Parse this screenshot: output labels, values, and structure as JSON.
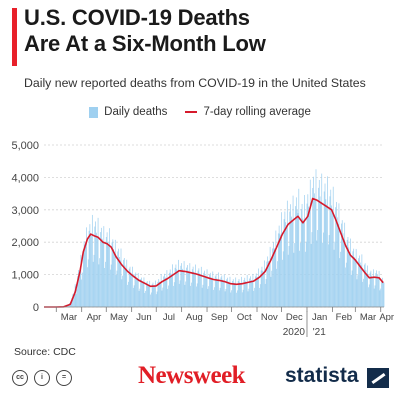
{
  "title_lines": [
    "U.S. COVID-19 Deaths",
    "Are At a Six-Month Low"
  ],
  "subtitle": "Daily new reported deaths from COVID-19 in the United States",
  "source": "Source: CDC",
  "brands": {
    "newsweek": "Newsweek",
    "statista": "statista"
  },
  "license_icons": [
    "cc-icon",
    "by-icon",
    "nd-icon"
  ],
  "colors": {
    "accent": "#e8202a",
    "bars": "#9fd0f0",
    "line": "#d61a2c",
    "statista": "#132c4a"
  },
  "chart_data": {
    "type": "bar",
    "combined_with": "line",
    "x_tick_labels": [
      "Mar",
      "Apr",
      "May",
      "Jun",
      "Jul",
      "Aug",
      "Sep",
      "Oct",
      "Nov",
      "Dec",
      "Jan",
      "Feb",
      "Mar",
      "Apr"
    ],
    "x_tick_dates": [
      "2020-03-01",
      "2020-04-01",
      "2020-05-01",
      "2020-06-01",
      "2020-07-01",
      "2020-08-01",
      "2020-09-01",
      "2020-10-01",
      "2020-11-01",
      "2020-12-01",
      "2021-01-01",
      "2021-02-01",
      "2021-03-01",
      "2021-04-01"
    ],
    "year_labels": [
      {
        "label": "2020",
        "date": "2020-12-16"
      },
      {
        "label": "'21",
        "date": "2021-01-16"
      }
    ],
    "y_ticks": [
      0,
      1000,
      2000,
      3000,
      4000,
      5000
    ],
    "y_tick_labels": [
      "0",
      "1,000",
      "2,000",
      "3,000",
      "4,000",
      "5,000"
    ],
    "ylim": [
      0,
      5000
    ],
    "xlim": [
      "2020-02-15",
      "2021-04-05"
    ],
    "grid": true,
    "legend_position": "top",
    "series": [
      {
        "name": "Daily deaths",
        "type": "bar",
        "daily_estimates_note": "",
        "points": [
          [
            "2020-02-15",
            0
          ],
          [
            "2020-03-01",
            0
          ],
          [
            "2020-03-10",
            10
          ],
          [
            "2020-03-18",
            100
          ],
          [
            "2020-03-24",
            550
          ],
          [
            "2020-03-30",
            1150
          ],
          [
            "2020-04-05",
            1800
          ],
          [
            "2020-04-10",
            2100
          ],
          [
            "2020-04-15",
            2250
          ],
          [
            "2020-04-21",
            2150
          ],
          [
            "2020-04-28",
            1950
          ],
          [
            "2020-05-05",
            1900
          ],
          [
            "2020-05-12",
            1620
          ],
          [
            "2020-05-20",
            1380
          ],
          [
            "2020-05-27",
            1100
          ],
          [
            "2020-06-03",
            950
          ],
          [
            "2020-06-10",
            800
          ],
          [
            "2020-06-17",
            700
          ],
          [
            "2020-06-24",
            620
          ],
          [
            "2020-07-01",
            640
          ],
          [
            "2020-07-08",
            820
          ],
          [
            "2020-07-15",
            900
          ],
          [
            "2020-07-22",
            1050
          ],
          [
            "2020-07-29",
            1150
          ],
          [
            "2020-08-05",
            1100
          ],
          [
            "2020-08-12",
            1050
          ],
          [
            "2020-08-19",
            1020
          ],
          [
            "2020-08-26",
            960
          ],
          [
            "2020-09-02",
            900
          ],
          [
            "2020-09-09",
            850
          ],
          [
            "2020-09-16",
            830
          ],
          [
            "2020-09-23",
            780
          ],
          [
            "2020-09-30",
            720
          ],
          [
            "2020-10-07",
            710
          ],
          [
            "2020-10-14",
            730
          ],
          [
            "2020-10-21",
            780
          ],
          [
            "2020-10-28",
            800
          ],
          [
            "2020-11-04",
            950
          ],
          [
            "2020-11-11",
            1150
          ],
          [
            "2020-11-18",
            1500
          ],
          [
            "2020-11-25",
            1900
          ],
          [
            "2020-12-02",
            2350
          ],
          [
            "2020-12-09",
            2600
          ],
          [
            "2020-12-16",
            2700
          ],
          [
            "2020-12-21",
            2900
          ],
          [
            "2020-12-27",
            2600
          ],
          [
            "2021-01-04",
            3000
          ],
          [
            "2021-01-09",
            3350
          ],
          [
            "2021-01-14",
            3300
          ],
          [
            "2021-01-20",
            3200
          ],
          [
            "2021-01-26",
            3150
          ],
          [
            "2021-02-01",
            2950
          ],
          [
            "2021-02-06",
            2700
          ],
          [
            "2021-02-12",
            2300
          ],
          [
            "2021-02-18",
            1900
          ],
          [
            "2021-02-24",
            1600
          ],
          [
            "2021-03-02",
            1400
          ],
          [
            "2021-03-10",
            1250
          ],
          [
            "2021-03-16",
            1000
          ],
          [
            "2021-03-22",
            900
          ],
          [
            "2021-03-28",
            950
          ],
          [
            "2021-04-02",
            750
          ]
        ]
      },
      {
        "name": "7-day rolling average",
        "type": "line",
        "points": [
          [
            "2020-02-15",
            0
          ],
          [
            "2020-03-01",
            0
          ],
          [
            "2020-03-10",
            5
          ],
          [
            "2020-03-18",
            80
          ],
          [
            "2020-03-24",
            450
          ],
          [
            "2020-03-30",
            1100
          ],
          [
            "2020-04-03",
            1700
          ],
          [
            "2020-04-08",
            2100
          ],
          [
            "2020-04-12",
            2250
          ],
          [
            "2020-04-16",
            2200
          ],
          [
            "2020-04-21",
            2150
          ],
          [
            "2020-04-27",
            2000
          ],
          [
            "2020-05-02",
            1950
          ],
          [
            "2020-05-07",
            1850
          ],
          [
            "2020-05-13",
            1550
          ],
          [
            "2020-05-20",
            1300
          ],
          [
            "2020-05-27",
            1100
          ],
          [
            "2020-06-03",
            950
          ],
          [
            "2020-06-10",
            820
          ],
          [
            "2020-06-17",
            730
          ],
          [
            "2020-06-24",
            640
          ],
          [
            "2020-07-01",
            650
          ],
          [
            "2020-07-08",
            780
          ],
          [
            "2020-07-15",
            880
          ],
          [
            "2020-07-22",
            1000
          ],
          [
            "2020-07-29",
            1120
          ],
          [
            "2020-08-05",
            1100
          ],
          [
            "2020-08-12",
            1060
          ],
          [
            "2020-08-19",
            1020
          ],
          [
            "2020-08-26",
            960
          ],
          [
            "2020-09-02",
            900
          ],
          [
            "2020-09-09",
            850
          ],
          [
            "2020-09-16",
            820
          ],
          [
            "2020-09-23",
            780
          ],
          [
            "2020-09-30",
            720
          ],
          [
            "2020-10-07",
            700
          ],
          [
            "2020-10-14",
            720
          ],
          [
            "2020-10-21",
            760
          ],
          [
            "2020-10-28",
            800
          ],
          [
            "2020-11-04",
            920
          ],
          [
            "2020-11-11",
            1100
          ],
          [
            "2020-11-18",
            1450
          ],
          [
            "2020-11-25",
            1850
          ],
          [
            "2020-12-02",
            2250
          ],
          [
            "2020-12-09",
            2550
          ],
          [
            "2020-12-16",
            2700
          ],
          [
            "2020-12-21",
            2800
          ],
          [
            "2020-12-27",
            2600
          ],
          [
            "2021-01-02",
            2800
          ],
          [
            "2021-01-08",
            3350
          ],
          [
            "2021-01-13",
            3300
          ],
          [
            "2021-01-19",
            3200
          ],
          [
            "2021-01-25",
            3100
          ],
          [
            "2021-01-31",
            3000
          ],
          [
            "2021-02-05",
            2700
          ],
          [
            "2021-02-11",
            2300
          ],
          [
            "2021-02-17",
            1900
          ],
          [
            "2021-02-23",
            1600
          ],
          [
            "2021-03-01",
            1450
          ],
          [
            "2021-03-07",
            1250
          ],
          [
            "2021-03-13",
            1050
          ],
          [
            "2021-03-18",
            900
          ],
          [
            "2021-03-24",
            920
          ],
          [
            "2021-03-30",
            900
          ],
          [
            "2021-04-04",
            750
          ]
        ]
      }
    ]
  }
}
